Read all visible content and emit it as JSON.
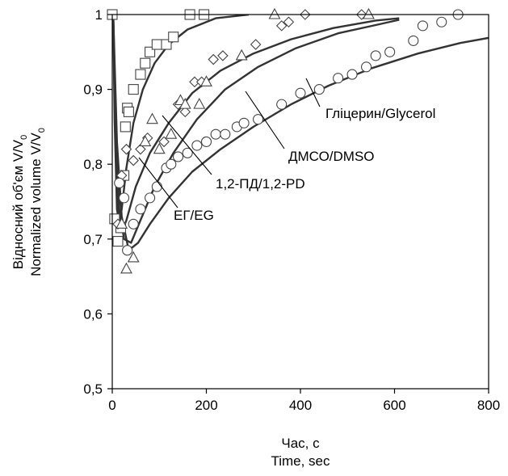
{
  "chart_data": {
    "type": "scatter",
    "xlabel_line1": "Час, с",
    "xlabel_line2": "Time, sec",
    "ylabel_line1": "Відносний об'єм V/V",
    "ylabel_line2": "Normalized volume V/V",
    "ylabel_subscript": "0",
    "xlim": [
      0,
      800
    ],
    "ylim": [
      0.5,
      1.0
    ],
    "xticks": [
      0,
      200,
      400,
      600,
      800
    ],
    "xtick_labels": [
      "0",
      "200",
      "400",
      "600",
      "800"
    ],
    "yticks": [
      0.5,
      0.6,
      0.7,
      0.8,
      0.9,
      1.0
    ],
    "ytick_labels": [
      "0,5",
      "0,6",
      "0,7",
      "0,8",
      "0,9",
      "1"
    ],
    "grid": false,
    "series": [
      {
        "name": "ЕГ/EG",
        "marker": "square",
        "points": [
          [
            0,
            1.0
          ],
          [
            5,
            0.727
          ],
          [
            12,
            0.697
          ],
          [
            18,
            0.715
          ],
          [
            25,
            0.785
          ],
          [
            28,
            0.85
          ],
          [
            32,
            0.875
          ],
          [
            35,
            0.87
          ],
          [
            45,
            0.9
          ],
          [
            60,
            0.92
          ],
          [
            70,
            0.935
          ],
          [
            80,
            0.95
          ],
          [
            95,
            0.96
          ],
          [
            115,
            0.96
          ],
          [
            130,
            0.97
          ],
          [
            165,
            1.0
          ],
          [
            195,
            1.0
          ]
        ],
        "curve": [
          [
            2,
            1.0
          ],
          [
            5,
            0.86
          ],
          [
            10,
            0.74
          ],
          [
            15,
            0.72
          ],
          [
            20,
            0.74
          ],
          [
            30,
            0.795
          ],
          [
            45,
            0.855
          ],
          [
            65,
            0.9
          ],
          [
            90,
            0.935
          ],
          [
            120,
            0.96
          ],
          [
            160,
            0.98
          ],
          [
            220,
            0.995
          ],
          [
            290,
            1.0
          ]
        ]
      },
      {
        "name": "1,2-ПД/1,2-PD",
        "marker": "diamond",
        "points": [
          [
            12,
            0.72
          ],
          [
            20,
            0.785
          ],
          [
            30,
            0.82
          ],
          [
            45,
            0.805
          ],
          [
            60,
            0.82
          ],
          [
            75,
            0.835
          ],
          [
            110,
            0.83
          ],
          [
            140,
            0.88
          ],
          [
            155,
            0.87
          ],
          [
            175,
            0.91
          ],
          [
            190,
            0.91
          ],
          [
            215,
            0.94
          ],
          [
            235,
            0.945
          ],
          [
            305,
            0.96
          ],
          [
            360,
            0.985
          ],
          [
            375,
            0.99
          ],
          [
            410,
            1.0
          ],
          [
            530,
            1.0
          ]
        ],
        "curve": [
          [
            2,
            1.0
          ],
          [
            6,
            0.85
          ],
          [
            12,
            0.74
          ],
          [
            20,
            0.71
          ],
          [
            30,
            0.725
          ],
          [
            50,
            0.77
          ],
          [
            80,
            0.815
          ],
          [
            120,
            0.855
          ],
          [
            170,
            0.895
          ],
          [
            230,
            0.925
          ],
          [
            300,
            0.948
          ],
          [
            380,
            0.967
          ],
          [
            470,
            0.982
          ],
          [
            560,
            0.992
          ],
          [
            610,
            0.995
          ]
        ]
      },
      {
        "name": "ДМСО/DMSO",
        "marker": "triangle",
        "points": [
          [
            20,
            0.72
          ],
          [
            30,
            0.66
          ],
          [
            45,
            0.675
          ],
          [
            70,
            0.83
          ],
          [
            85,
            0.86
          ],
          [
            100,
            0.82
          ],
          [
            125,
            0.84
          ],
          [
            145,
            0.885
          ],
          [
            155,
            0.88
          ],
          [
            185,
            0.88
          ],
          [
            200,
            0.91
          ],
          [
            275,
            0.945
          ],
          [
            345,
            1.0
          ],
          [
            545,
            1.0
          ]
        ],
        "curve": [
          [
            2,
            1.0
          ],
          [
            8,
            0.83
          ],
          [
            15,
            0.74
          ],
          [
            25,
            0.7
          ],
          [
            40,
            0.695
          ],
          [
            60,
            0.725
          ],
          [
            90,
            0.77
          ],
          [
            130,
            0.815
          ],
          [
            180,
            0.86
          ],
          [
            240,
            0.9
          ],
          [
            310,
            0.93
          ],
          [
            390,
            0.955
          ],
          [
            480,
            0.975
          ],
          [
            560,
            0.986
          ],
          [
            610,
            0.993
          ]
        ]
      },
      {
        "name": "Гліцерин/Glycerol",
        "marker": "circle",
        "points": [
          [
            15,
            0.775
          ],
          [
            25,
            0.755
          ],
          [
            32,
            0.685
          ],
          [
            45,
            0.72
          ],
          [
            60,
            0.74
          ],
          [
            80,
            0.755
          ],
          [
            95,
            0.77
          ],
          [
            115,
            0.795
          ],
          [
            125,
            0.8
          ],
          [
            140,
            0.81
          ],
          [
            160,
            0.815
          ],
          [
            180,
            0.825
          ],
          [
            200,
            0.83
          ],
          [
            220,
            0.84
          ],
          [
            240,
            0.84
          ],
          [
            265,
            0.85
          ],
          [
            280,
            0.855
          ],
          [
            310,
            0.86
          ],
          [
            360,
            0.88
          ],
          [
            400,
            0.895
          ],
          [
            440,
            0.9
          ],
          [
            480,
            0.915
          ],
          [
            510,
            0.92
          ],
          [
            540,
            0.93
          ],
          [
            560,
            0.945
          ],
          [
            590,
            0.95
          ],
          [
            640,
            0.965
          ],
          [
            660,
            0.985
          ],
          [
            700,
            0.99
          ],
          [
            735,
            1.0
          ]
        ],
        "curve": [
          [
            2,
            1.0
          ],
          [
            10,
            0.83
          ],
          [
            20,
            0.73
          ],
          [
            35,
            0.685
          ],
          [
            55,
            0.695
          ],
          [
            80,
            0.72
          ],
          [
            120,
            0.755
          ],
          [
            170,
            0.79
          ],
          [
            230,
            0.82
          ],
          [
            300,
            0.85
          ],
          [
            380,
            0.88
          ],
          [
            460,
            0.905
          ],
          [
            550,
            0.928
          ],
          [
            650,
            0.948
          ],
          [
            740,
            0.962
          ],
          [
            810,
            0.97
          ]
        ]
      }
    ],
    "annotations": [
      {
        "text": "Гліцерин/Glycerol",
        "series": "Гліцерин/Glycerol"
      },
      {
        "text": "ДМСО/DMSO",
        "series": "ДМСО/DMSO"
      },
      {
        "text": "1,2-ПД/1,2-PD",
        "series": "1,2-ПД/1,2-PD"
      },
      {
        "text": "ЕГ/EG",
        "series": "ЕГ/EG"
      }
    ]
  }
}
